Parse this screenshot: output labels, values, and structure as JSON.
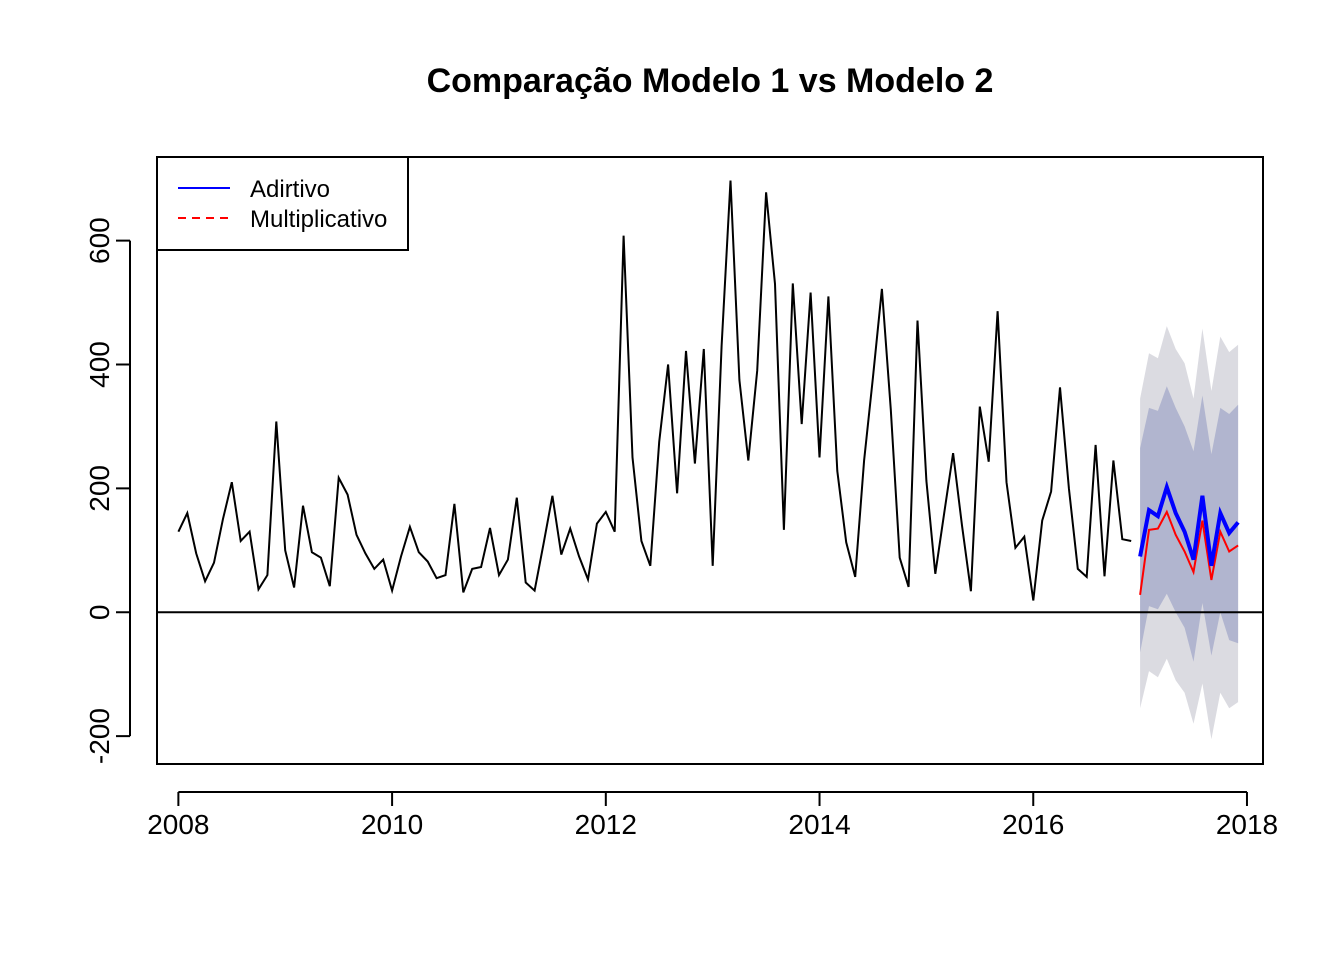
{
  "chart_data": {
    "type": "line",
    "title": "Comparação Modelo 1 vs Modelo 2",
    "xlabel": "",
    "ylabel": "",
    "xlim": [
      2007.8,
      2018.15
    ],
    "ylim": [
      -245,
      735
    ],
    "x_ticks": [
      2008,
      2010,
      2012,
      2014,
      2016,
      2018
    ],
    "y_ticks": [
      -200,
      0,
      200,
      400,
      600
    ],
    "x_tick_labels": [
      "2008",
      "2010",
      "2012",
      "2014",
      "2016",
      "2018"
    ],
    "y_tick_labels": [
      "-200",
      "0",
      "200",
      "400",
      "600"
    ],
    "hline": 0,
    "legend": {
      "position": "top-left",
      "entries": [
        {
          "label": "Adirtivo",
          "color": "#0000ff",
          "style": "solid"
        },
        {
          "label": "Multiplicativo",
          "color": "#ff0000",
          "style": "dashed"
        }
      ]
    },
    "history": {
      "start": 2008,
      "frequency": 12,
      "color": "#000000",
      "values": [
        130,
        160,
        95,
        50,
        80,
        150,
        210,
        115,
        130,
        37,
        60,
        308,
        100,
        40,
        172,
        97,
        88,
        42,
        217,
        190,
        125,
        95,
        70,
        85,
        35,
        90,
        138,
        97,
        82,
        55,
        60,
        175,
        32,
        70,
        73,
        136,
        60,
        85,
        185,
        48,
        35,
        110,
        188,
        93,
        135,
        90,
        53,
        143,
        162,
        130,
        608,
        250,
        115,
        75,
        275,
        400,
        192,
        422,
        240,
        425,
        75,
        430,
        697,
        375,
        245,
        390,
        678,
        530,
        133,
        531,
        304,
        516,
        250,
        510,
        228,
        113,
        57,
        245,
        380,
        522,
        327,
        88,
        41,
        471,
        212,
        62,
        160,
        257,
        140,
        34,
        332,
        243,
        486,
        210,
        104,
        122,
        19,
        148,
        195,
        363,
        200,
        70,
        57,
        270,
        58,
        245,
        118,
        115
      ]
    },
    "forecast": {
      "start": 2017,
      "frequency": 12,
      "series": [
        {
          "name": "Adirtivo",
          "color": "#0000ff",
          "values": [
            90,
            165,
            155,
            202,
            160,
            130,
            85,
            188,
            75,
            160,
            128,
            145
          ]
        },
        {
          "name": "Multiplicativo",
          "color": "#ff0000",
          "values": [
            28,
            133,
            135,
            162,
            125,
            98,
            65,
            148,
            52,
            130,
            98,
            108
          ]
        }
      ],
      "band80": {
        "color": "#b1b5cf",
        "lower": [
          -65,
          10,
          5,
          30,
          0,
          -25,
          -80,
          15,
          -70,
          0,
          -45,
          -50
        ],
        "upper": [
          265,
          330,
          325,
          365,
          330,
          300,
          260,
          350,
          255,
          330,
          320,
          335
        ]
      },
      "band95": {
        "color": "#dbdbe1",
        "lower": [
          -155,
          -95,
          -105,
          -75,
          -110,
          -130,
          -180,
          -115,
          -205,
          -130,
          -155,
          -145
        ],
        "upper": [
          345,
          418,
          410,
          462,
          425,
          402,
          345,
          458,
          357,
          445,
          420,
          432
        ]
      }
    }
  }
}
